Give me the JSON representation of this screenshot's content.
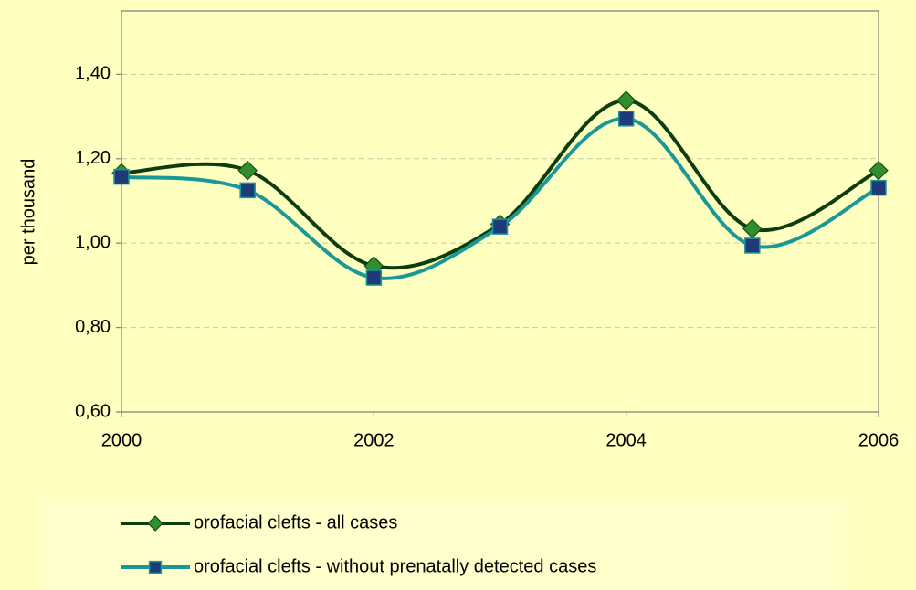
{
  "chart_data": {
    "type": "line",
    "y_label": "per thousand",
    "x": [
      2000,
      2001,
      2002,
      2003,
      2004,
      2005,
      2006
    ],
    "xlim": [
      2000,
      2006
    ],
    "xticks": [
      2000,
      2002,
      2004,
      2006
    ],
    "ylim": [
      0.6,
      1.55
    ],
    "yticks": [
      {
        "value": 0.6,
        "label": "0,60"
      },
      {
        "value": 0.8,
        "label": "0,80"
      },
      {
        "value": 1.0,
        "label": "1,00"
      },
      {
        "value": 1.2,
        "label": "1,20"
      },
      {
        "value": 1.4,
        "label": "1,40"
      }
    ],
    "grid": true,
    "smooth": true,
    "legend": "bottom",
    "series": [
      {
        "name": "orofacial clefts - all cases",
        "color": "#0d3d0d",
        "marker": "diamond",
        "marker_color": "#2f8f2f",
        "values": [
          1.166,
          1.172,
          0.946,
          1.045,
          1.338,
          1.034,
          1.172
        ]
      },
      {
        "name": "orofacial clefts - without prenatally detected cases",
        "color": "#1a9898",
        "marker": "square",
        "marker_color": "#1f3a78",
        "values": [
          1.157,
          1.125,
          0.918,
          1.039,
          1.295,
          0.994,
          1.131
        ]
      }
    ]
  }
}
